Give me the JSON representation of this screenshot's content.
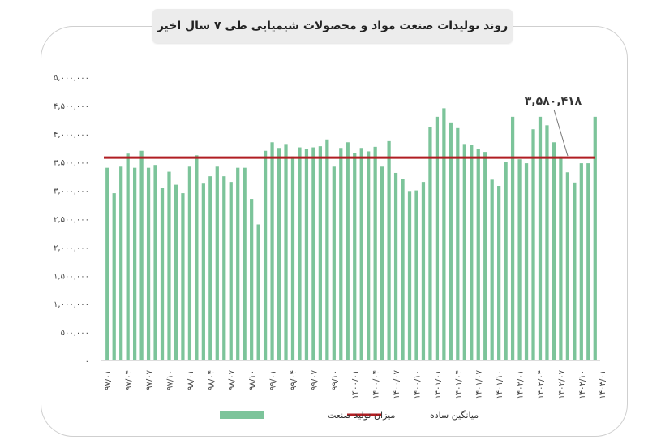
{
  "chart_data": {
    "type": "bar",
    "title": "روند تولیدات صنعت مواد و محصولات شیمیایی طی ۷ سال اخیر",
    "ylim": [
      0,
      5000000
    ],
    "y_ticks": [
      "۵,۰۰۰,۰۰۰",
      "۴,۵۰۰,۰۰۰",
      "۴,۰۰۰,۰۰۰",
      "۳,۵۰۰,۰۰۰",
      "۳,۰۰۰,۰۰۰",
      "۲,۵۰۰,۰۰۰",
      "۲,۰۰۰,۰۰۰",
      "۱,۵۰۰,۰۰۰",
      "۱,۰۰۰,۰۰۰",
      "۵۰۰,۰۰۰",
      "۰"
    ],
    "y_tick_values": [
      5000000,
      4500000,
      4000000,
      3500000,
      3000000,
      2500000,
      2000000,
      1500000,
      1000000,
      500000,
      0
    ],
    "x_tick_labels": [
      "۹۷/۰۱",
      "۹۷/۰۴",
      "۹۷/۰۷",
      "۹۷/۱۰",
      "۹۸/۰۱",
      "۹۸/۰۴",
      "۹۸/۰۷",
      "۹۸/۱۰",
      "۹۹/۰۱",
      "۹۹/۰۴",
      "۹۹/۰۷",
      "۹۹/۱۰",
      "۱۴۰۰/۰۱",
      "۱۴۰۰/۰۴",
      "۱۴۰۰/۰۷",
      "۱۴۰۰/۱۰",
      "۱۴۰۱/۰۱",
      "۱۴۰۱/۰۴",
      "۱۴۰۱/۰۷",
      "۱۴۰۱/۱۰",
      "۱۴۰۲/۰۱",
      "۱۴۰۲/۰۴",
      "۱۴۰۲/۰۷",
      "۱۴۰۲/۱۰",
      "۱۴۰۳/۰۱"
    ],
    "series": [
      {
        "name": "میزان تولید صنعت",
        "color": "#7cc49a",
        "values": [
          3400000,
          2950000,
          3420000,
          3650000,
          3400000,
          3700000,
          3400000,
          3450000,
          3050000,
          3330000,
          3100000,
          2950000,
          3420000,
          3620000,
          3120000,
          3250000,
          3420000,
          3250000,
          3150000,
          3400000,
          3400000,
          2850000,
          2400000,
          3700000,
          3850000,
          3750000,
          3820000,
          3600000,
          3760000,
          3730000,
          3760000,
          3780000,
          3900000,
          3420000,
          3750000,
          3850000,
          3660000,
          3750000,
          3690000,
          3770000,
          3420000,
          3870000,
          3310000,
          3200000,
          2990000,
          3000000,
          3150000,
          4120000,
          4300000,
          4450000,
          4200000,
          4100000,
          3820000,
          3800000,
          3730000,
          3680000,
          3190000,
          3080000,
          3500000,
          4300000,
          3550000,
          3480000,
          4080000,
          4300000,
          4150000,
          3850000,
          3600000,
          3320000,
          3140000,
          3480000,
          3480000,
          4300000
        ]
      }
    ],
    "mean": {
      "name": "میانگین ساده",
      "value": 3580418,
      "label": "۳,۵۸۰,۴۱۸",
      "color": "#b01e23"
    },
    "legend_position": "bottom",
    "grid": false
  }
}
